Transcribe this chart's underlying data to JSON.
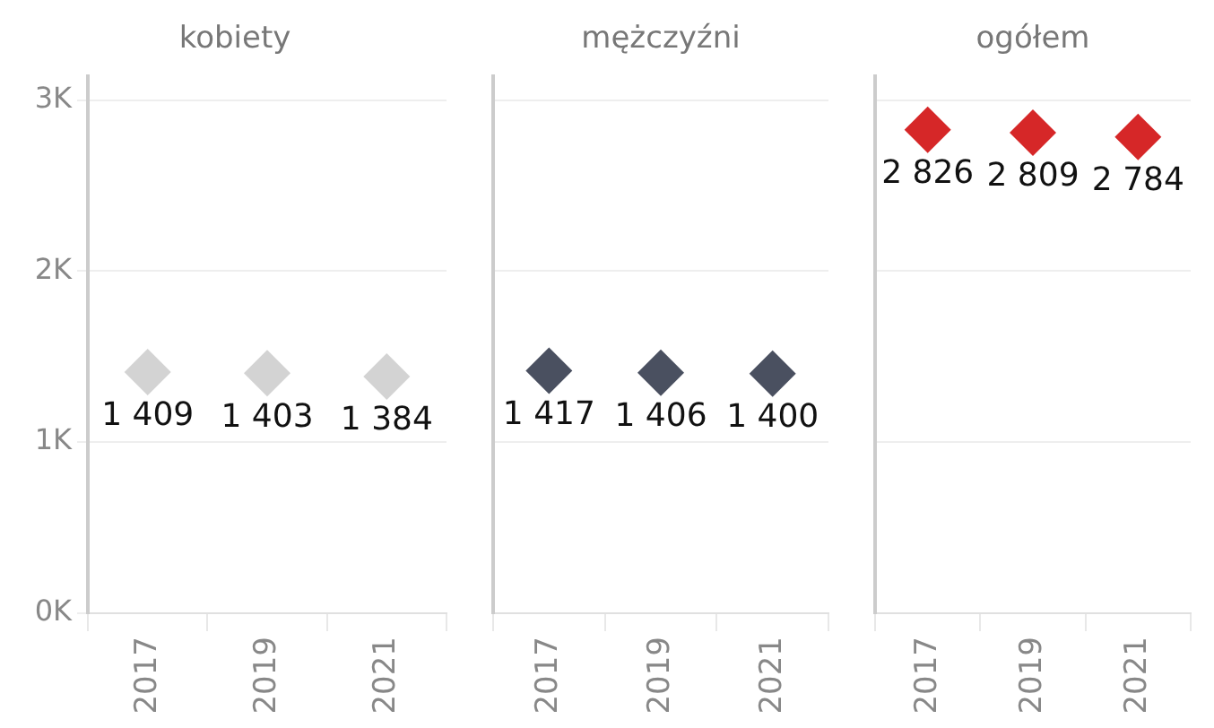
{
  "chart_data": [
    {
      "type": "scatter",
      "title": "kobiety",
      "categories": [
        "2017",
        "2019",
        "2021"
      ],
      "values": [
        1409,
        1403,
        1384
      ],
      "value_labels": [
        "1 409",
        "1 403",
        "1 384"
      ],
      "color": "#d3d3d3",
      "marker": "diamond",
      "ylim": [
        0,
        3140
      ],
      "yticks": [
        {
          "value": 0,
          "label": "0K"
        },
        {
          "value": 1000,
          "label": "1K"
        },
        {
          "value": 2000,
          "label": "2K"
        },
        {
          "value": 3000,
          "label": "3K"
        }
      ],
      "grid": "y"
    },
    {
      "type": "scatter",
      "title": "mężczyźni",
      "categories": [
        "2017",
        "2019",
        "2021"
      ],
      "values": [
        1417,
        1406,
        1400
      ],
      "value_labels": [
        "1 417",
        "1 406",
        "1 400"
      ],
      "color": "#4a5060",
      "marker": "diamond",
      "ylim": [
        0,
        3140
      ],
      "yticks": [
        0,
        1000,
        2000,
        3000
      ],
      "grid": "y",
      "tick_labels": "x"
    },
    {
      "type": "scatter",
      "title": "ogółem",
      "categories": [
        "2017",
        "2019",
        "2021"
      ],
      "values": [
        2826,
        2809,
        2784
      ],
      "value_labels": [
        "2 826",
        "2 809",
        "2 784"
      ],
      "color": "#d62728",
      "marker": "diamond",
      "ylim": [
        0,
        3140
      ],
      "yticks": [
        0,
        1000,
        2000,
        3000
      ],
      "grid": "y",
      "tick_labels": "x"
    }
  ]
}
